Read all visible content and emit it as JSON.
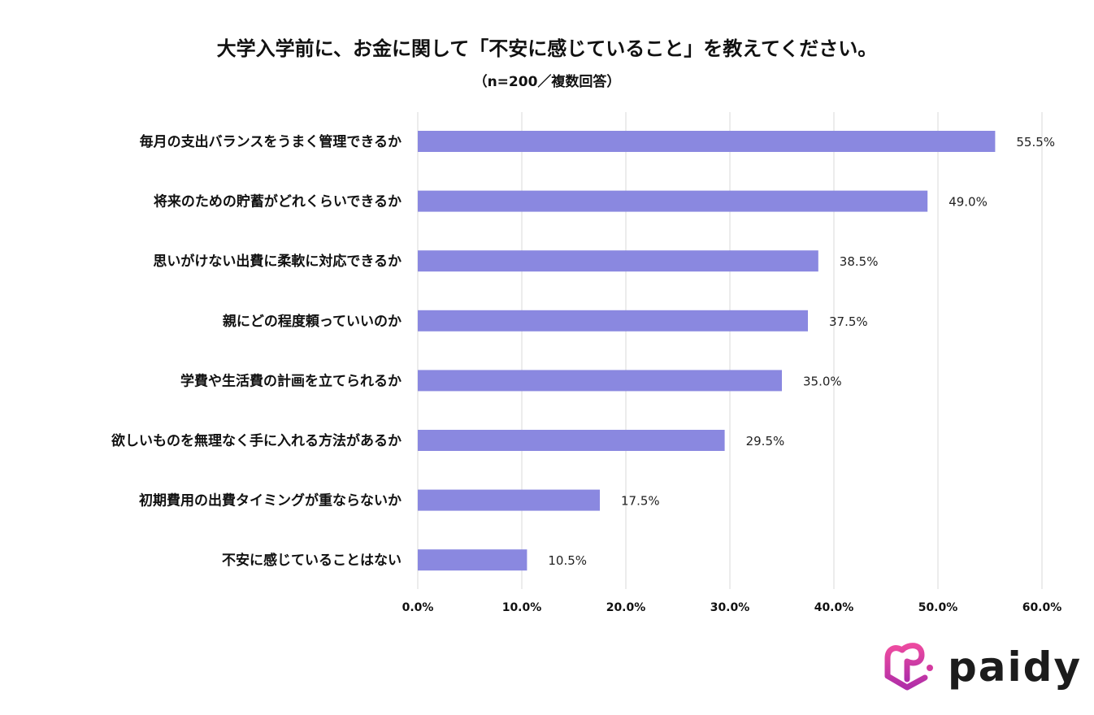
{
  "chart_data": {
    "type": "bar",
    "orientation": "horizontal",
    "title": "大学入学前に、お金に関して「不安に感じていること」を教えてください。",
    "subtitle": "（n=200／複数回答）",
    "categories": [
      "毎月の支出バランスをうまく管理できるか",
      "将来のための貯蓄がどれくらいできるか",
      "思いがけない出費に柔軟に対応できるか",
      "親にどの程度頼っていいのか",
      "学費や生活費の計画を立てられるか",
      "欲しいものを無理なく手に入れる方法があるか",
      "初期費用の出費タイミングが重ならないか",
      "不安に感じていることはない"
    ],
    "values": [
      55.5,
      49.0,
      38.5,
      37.5,
      35.0,
      29.5,
      17.5,
      10.5
    ],
    "value_labels": [
      "55.5%",
      "49.0%",
      "38.5%",
      "37.5%",
      "35.0%",
      "29.5%",
      "17.5%",
      "10.5%"
    ],
    "xlim": [
      0,
      60
    ],
    "x_ticks": [
      "0.0%",
      "10.0%",
      "20.0%",
      "30.0%",
      "40.0%",
      "50.0%",
      "60.0%"
    ],
    "grid": true,
    "bar_color": "#8a88e0",
    "xlabel": "",
    "ylabel": ""
  },
  "brand": {
    "logo_text": "paidy",
    "logo_color": "#e0389a"
  }
}
